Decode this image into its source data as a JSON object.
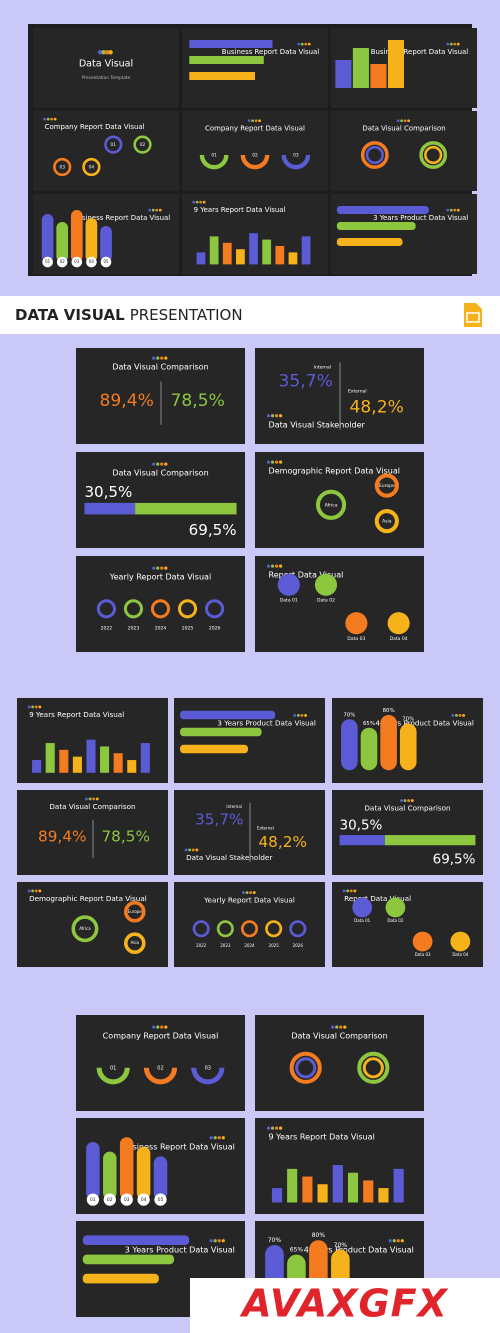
{
  "header": {
    "title_bold": "DATA VISUAL",
    "title_rest": "PRESENTATION"
  },
  "watermark": "AVAXGFX",
  "overview": {
    "slides": [
      {
        "title": "Data Visual",
        "subtitle": "Presentation Template"
      },
      {
        "title": "Business Report Data Visual"
      },
      {
        "title": "Business Report Data Visual"
      },
      {
        "title": "Company Report Data Visual",
        "labels": [
          "01",
          "02",
          "03",
          "04"
        ]
      },
      {
        "title": "Company Report Data Visual",
        "labels": [
          "01",
          "02",
          "03"
        ]
      },
      {
        "title": "Data Visual Comparison"
      },
      {
        "title": "Business Report Data Visual",
        "labels": [
          "01",
          "02",
          "03",
          "04",
          "05"
        ]
      },
      {
        "title": "9 Years Report Data Visual"
      },
      {
        "title": "3 Years Product Data Visual"
      }
    ]
  },
  "section_a": {
    "slides": [
      {
        "title": "Data Visual Comparison",
        "stats": [
          "89,4%",
          "78,5%"
        ]
      },
      {
        "title": "Data Visual Stakeholder",
        "stats": [
          "35,7%",
          "48,2%"
        ],
        "labels": [
          "Internal",
          "External"
        ]
      },
      {
        "title": "Data Visual Comparison",
        "stats": [
          "30,5%",
          "69,5%"
        ]
      },
      {
        "title": "Demographic Report Data Visual",
        "labels": [
          "Europe",
          "Africa",
          "Asia"
        ]
      },
      {
        "title": "Yearly Report Data Visual",
        "labels": [
          "2022",
          "2023",
          "2024",
          "2025",
          "2026"
        ]
      },
      {
        "title": "Report Data Visual",
        "labels": [
          "Data 01",
          "Data 02",
          "Data 03",
          "Data 04"
        ]
      }
    ]
  },
  "section_b": {
    "slides": [
      {
        "title": "9 Years Report Data Visual"
      },
      {
        "title": "3 Years Product Data Visual"
      },
      {
        "title": "4 Years Product Data Visual",
        "stats": [
          "70%",
          "65%",
          "80%",
          "70%"
        ]
      },
      {
        "title": "Data Visual Comparison",
        "stats": [
          "89,4%",
          "78,5%"
        ]
      },
      {
        "title": "Data Visual Stakeholder",
        "stats": [
          "35,7%",
          "48,2%"
        ],
        "labels": [
          "Internal",
          "External"
        ]
      },
      {
        "title": "Data Visual Comparison",
        "stats": [
          "30,5%",
          "69,5%"
        ]
      },
      {
        "title": "Demographic Report Data Visual",
        "labels": [
          "Europe",
          "Africa",
          "Asia"
        ]
      },
      {
        "title": "Yearly Report Data Visual",
        "labels": [
          "2022",
          "2023",
          "2024",
          "2025",
          "2026"
        ]
      },
      {
        "title": "Report Data Visual",
        "labels": [
          "Data 01",
          "Data 02",
          "Data 03",
          "Data 04"
        ]
      }
    ]
  },
  "section_c": {
    "slides": [
      {
        "title": "Company Report Data Visual",
        "labels": [
          "01",
          "02",
          "03"
        ]
      },
      {
        "title": "Data Visual Comparison"
      },
      {
        "title": "Business Report Data Visual",
        "labels": [
          "01",
          "02",
          "03",
          "04",
          "05"
        ]
      },
      {
        "title": "9 Years Report Data Visual"
      },
      {
        "title": "3 Years Product Data Visual"
      },
      {
        "title": "4 Years Product Data Visual",
        "stats": [
          "70%",
          "65%",
          "80%",
          "70%"
        ]
      }
    ]
  }
}
